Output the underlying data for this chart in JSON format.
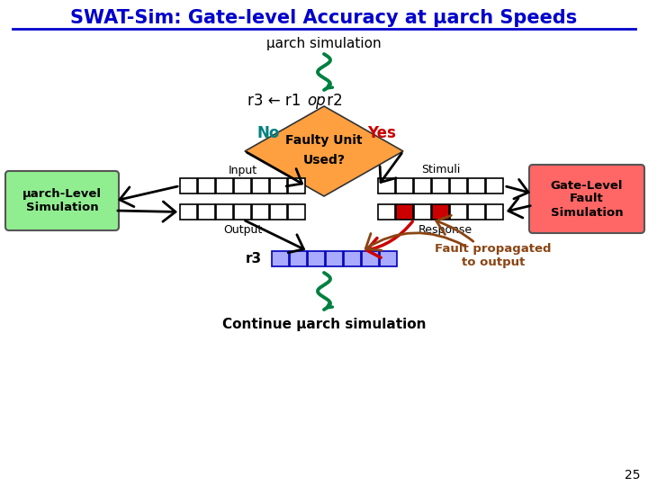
{
  "title": "SWAT-Sim: Gate-level Accuracy at µarch Speeds",
  "title_color": "#0000CC",
  "bg_color": "#FFFFFF",
  "uarch_sim_text": "µarch simulation",
  "diamond_line1": "Faulty Unit",
  "diamond_line2": "Used?",
  "diamond_color": "#FFA040",
  "no_text": "No",
  "no_color": "#008080",
  "yes_text": "Yes",
  "yes_color": "#CC0000",
  "input_label": "Input",
  "output_label": "Output",
  "stimuli_label": "Stimuli",
  "response_label": "Response",
  "r3_label": "r3",
  "left_box_text": "µarch-Level\nSimulation",
  "left_box_color": "#90EE90",
  "right_box_text": "Gate-Level\nFault\nSimulation",
  "right_box_color": "#FF6666",
  "fault_text": "Fault propagated\nto output",
  "fault_color": "#8B4513",
  "continue_text": "Continue µarch simulation",
  "page_num": "25",
  "snake_color": "#008040",
  "register_color": "#FFFFFF",
  "register_border": "#000000",
  "register_fault_color": "#CC0000",
  "arrow_color": "#000000",
  "red_arrow_color": "#CC0000",
  "brown_arrow_color": "#8B4513",
  "blue_register_fill": "#AAAAFF",
  "blue_register_border": "#0000BB"
}
